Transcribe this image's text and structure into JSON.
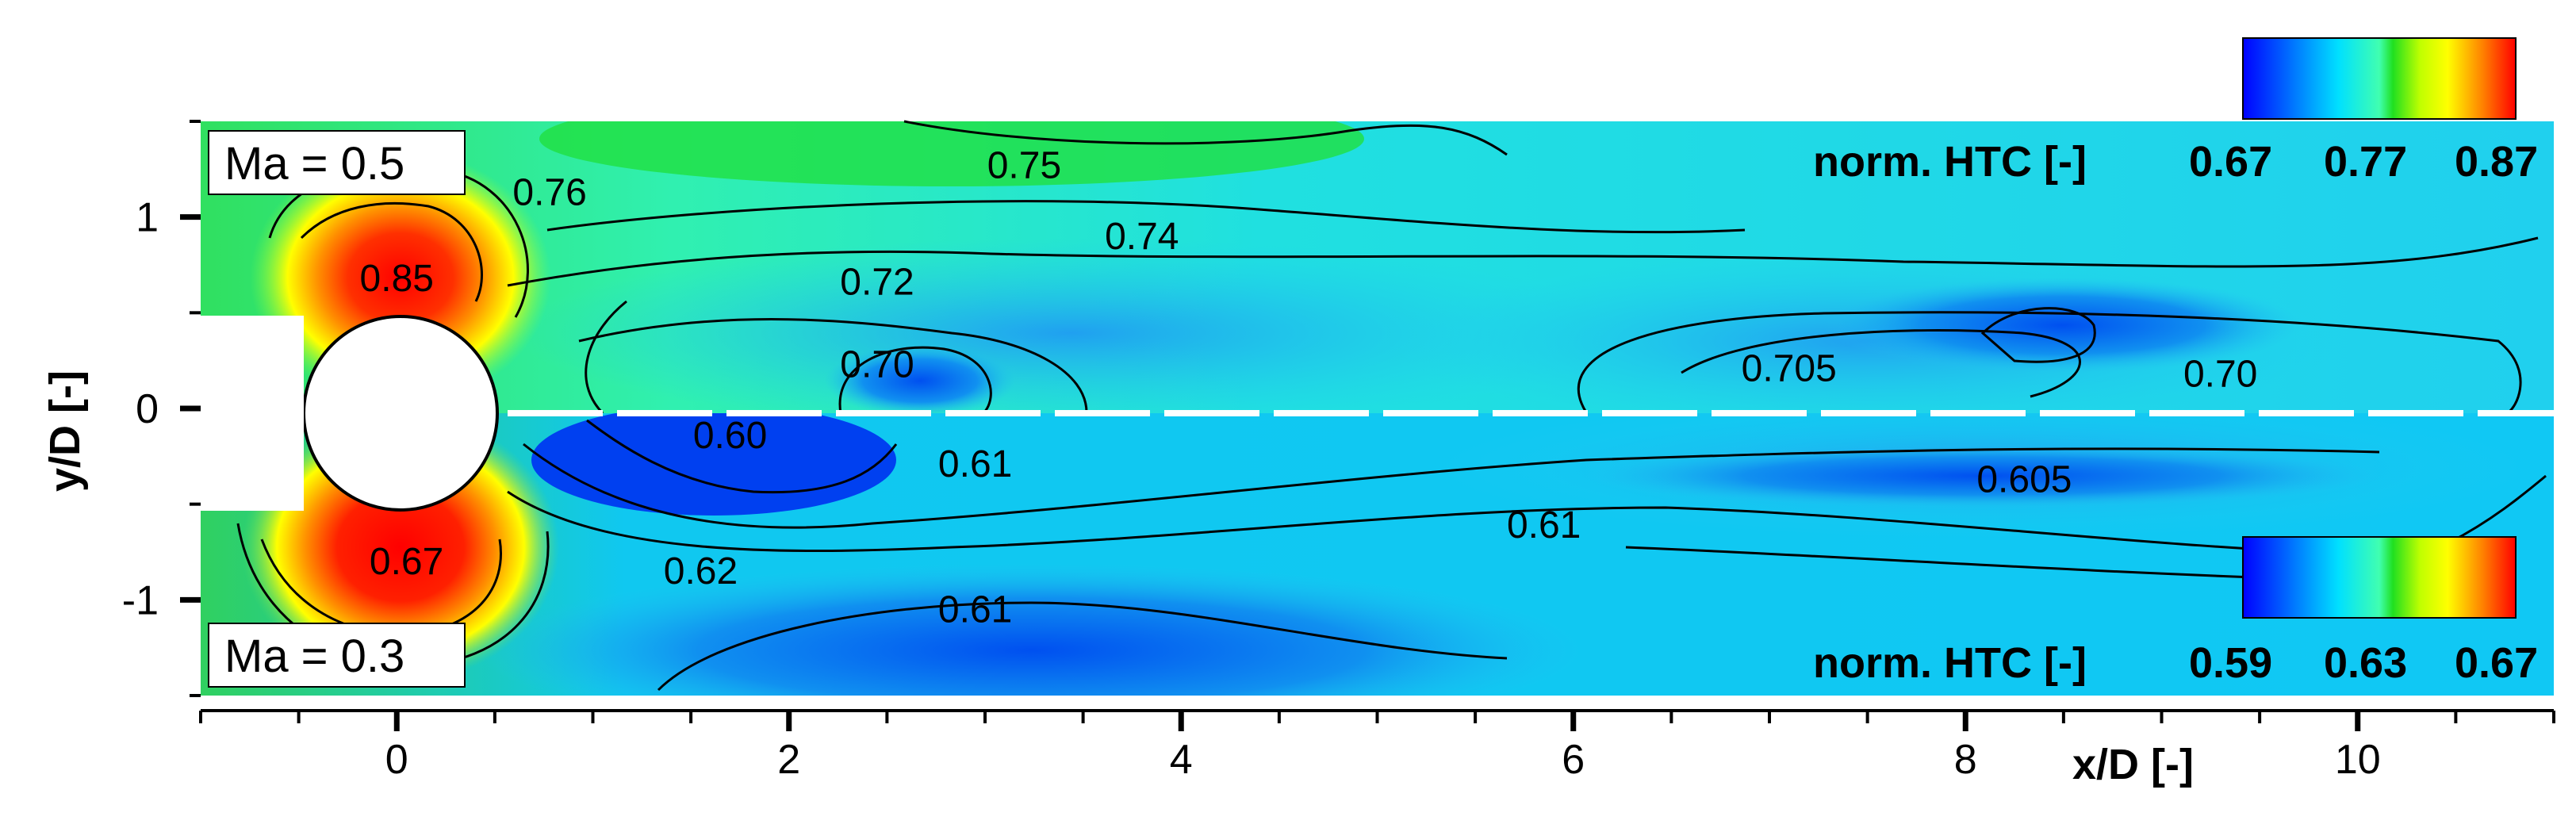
{
  "chart_data": {
    "type": "heatmap",
    "xlabel": "x/D [-]",
    "ylabel": "y/D [-]",
    "xlim": [
      -1,
      11
    ],
    "ylim": [
      -1.5,
      1.5
    ],
    "x_ticks": [
      {
        "value": 0,
        "label": "0"
      },
      {
        "value": 2,
        "label": "2"
      },
      {
        "value": 4,
        "label": "4"
      },
      {
        "value": 6,
        "label": "6"
      },
      {
        "value": 8,
        "label": "8"
      },
      {
        "value": 10,
        "label": "10"
      }
    ],
    "y_ticks": [
      {
        "value": 1,
        "label": "1"
      },
      {
        "value": 0,
        "label": "0"
      },
      {
        "value": -1,
        "label": "-1"
      }
    ],
    "upper_half": {
      "case_label": "Ma = 0.5",
      "colorbar": {
        "title": "norm. HTC [-]",
        "ticks": [
          "0.67",
          "0.77",
          "0.87"
        ],
        "range": [
          0.67,
          0.87
        ]
      },
      "contour_labels": [
        {
          "x": 3.2,
          "y": 1.27,
          "label": "0.75"
        },
        {
          "x": 0.78,
          "y": 1.13,
          "label": "0.76"
        },
        {
          "x": 3.8,
          "y": 0.9,
          "label": "0.74"
        },
        {
          "x": 0.0,
          "y": 0.68,
          "label": "0.85"
        },
        {
          "x": 2.45,
          "y": 0.66,
          "label": "0.72"
        },
        {
          "x": 2.45,
          "y": 0.23,
          "label": "0.70"
        },
        {
          "x": 7.1,
          "y": 0.21,
          "label": "0.705"
        },
        {
          "x": 9.3,
          "y": 0.18,
          "label": "0.70"
        }
      ]
    },
    "lower_half": {
      "case_label": "Ma = 0.3",
      "colorbar": {
        "title": "norm. HTC [-]",
        "ticks": [
          "0.59",
          "0.63",
          "0.67"
        ],
        "range": [
          0.59,
          0.67
        ]
      },
      "contour_labels": [
        {
          "x": 1.7,
          "y": -0.14,
          "label": "0.60"
        },
        {
          "x": 2.95,
          "y": -0.29,
          "label": "0.61"
        },
        {
          "x": 8.3,
          "y": -0.37,
          "label": "0.605"
        },
        {
          "x": 5.85,
          "y": -0.61,
          "label": "0.61"
        },
        {
          "x": 0.05,
          "y": -0.8,
          "label": "0.67"
        },
        {
          "x": 1.55,
          "y": -0.85,
          "label": "0.62"
        },
        {
          "x": 2.95,
          "y": -1.05,
          "label": "0.61"
        }
      ]
    }
  }
}
